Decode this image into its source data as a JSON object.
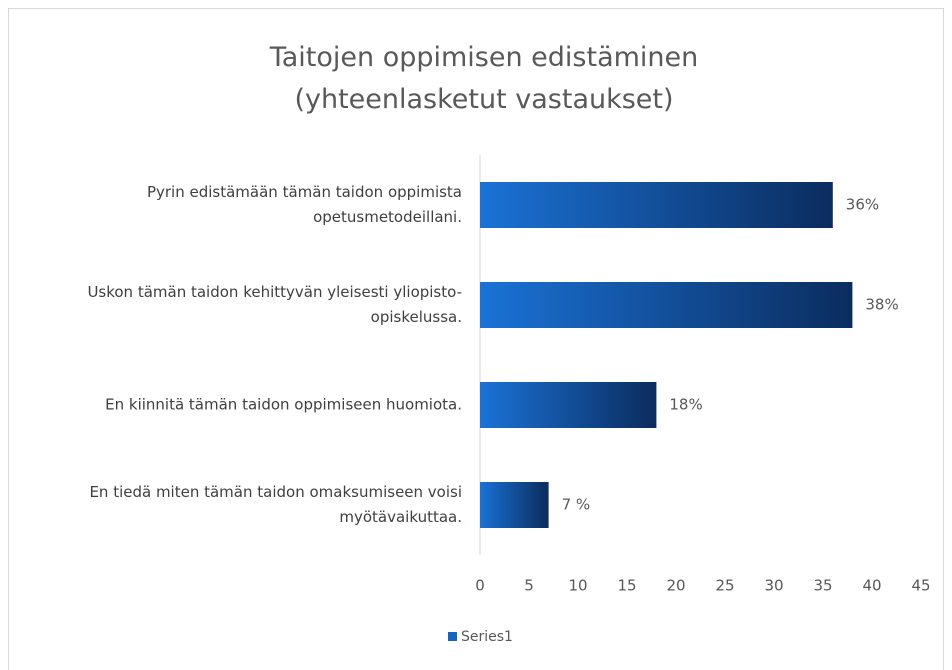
{
  "chart_data": {
    "type": "bar",
    "orientation": "horizontal",
    "title": "Taitojen oppimisen edistäminen (yhteenlasketut vastaukset)",
    "categories": [
      "Pyrin edistämään tämän taidon oppimista opetusmetodeillani.",
      "Uskon tämän taidon kehittyvän yleisesti yliopisto-opiskelussa.",
      "En kiinnitä tämän taidon oppimiseen huomiota.",
      "En tiedä miten tämän taidon omaksumiseen voisi myötävaikuttaa."
    ],
    "series": [
      {
        "name": "Series1",
        "color": "#1565c0",
        "values": [
          36,
          38,
          18,
          7
        ],
        "value_labels": [
          "36%",
          "38%",
          "18%",
          "7 %"
        ]
      }
    ],
    "xlim": [
      0,
      45
    ],
    "xticks": [
      0,
      5,
      10,
      15,
      20,
      25,
      30,
      35,
      40,
      45
    ],
    "grid": false,
    "legend": "bottom"
  }
}
